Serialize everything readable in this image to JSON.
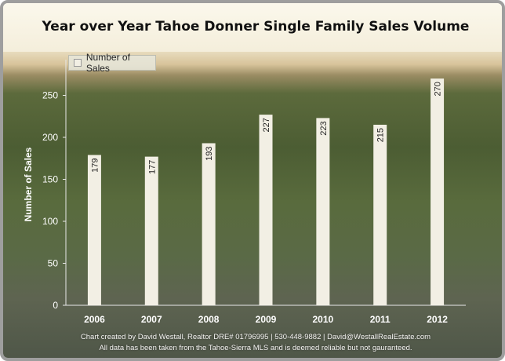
{
  "chart_data": {
    "type": "bar",
    "title": "Year over Year Tahoe Donner Single Family Sales Volume",
    "xlabel": "",
    "ylabel": "Number of Sales",
    "categories": [
      "2006",
      "2007",
      "2008",
      "2009",
      "2010",
      "2011",
      "2012"
    ],
    "series": [
      {
        "name": "Number of Sales",
        "values": [
          179,
          177,
          193,
          227,
          223,
          215,
          270
        ]
      }
    ],
    "ylim": [
      0,
      300
    ],
    "yticks": [
      0,
      50,
      100,
      150,
      200,
      250
    ],
    "legend_position": "top-left",
    "grid": false,
    "bar_color": "#f2efe4",
    "background": "photo of Truckee town and hillside"
  },
  "credits": {
    "line1": "Chart created by David Westall, Realtor DRE# 01796995 | 530-448-9882 | David@WestallRealEstate.com",
    "line2": "All data has been taken from the Tahoe-Sierra MLS and is deemed reliable but not gauranteed."
  }
}
